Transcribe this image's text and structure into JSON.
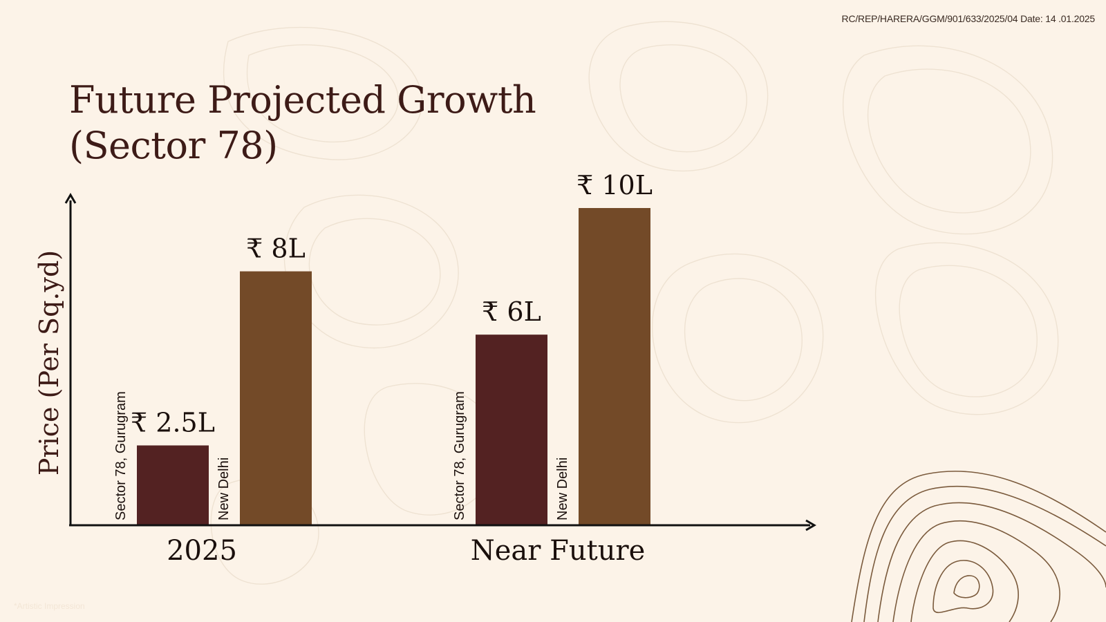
{
  "header": {
    "reference": "RC/REP/HARERA/GGM/901/633/2025/04 Date: 14 .01.2025"
  },
  "title": {
    "line1": "Future Projected Growth",
    "line2": "(Sector  78)"
  },
  "footer": {
    "credit": "*Artistic Impression"
  },
  "colors": {
    "background": "#fcf3e8",
    "sector78": "#532222",
    "newdelhi": "#734a28",
    "axis": "#111111",
    "text": "#3d1b17"
  },
  "chart_data": {
    "type": "bar",
    "title": "Future Projected Growth (Sector  78)",
    "ylabel": "Price (Per Sq.yd)",
    "xlabel": "",
    "ylim": [
      0,
      10.6
    ],
    "unit": "lakh INR per sq.yd",
    "categories": [
      "2025",
      "Near Future"
    ],
    "series": [
      {
        "name": "Sector 78, Gurugram",
        "values": [
          2.5,
          6
        ],
        "labels": [
          "₹ 2.5L",
          "₹ 6L"
        ],
        "color": "#532222"
      },
      {
        "name": "New Delhi",
        "values": [
          8,
          10
        ],
        "labels": [
          "₹ 8L",
          "₹ 10L"
        ],
        "color": "#734a28"
      }
    ],
    "legend": "none",
    "grid": false
  }
}
